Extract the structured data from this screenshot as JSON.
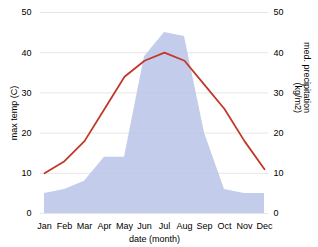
{
  "chart_data": {
    "type": "line",
    "xlabel": "date (month)",
    "ylabel": "max temp (C)",
    "y2label": "med. precipitation\n(kg/m2)",
    "categories": [
      "Jan",
      "Feb",
      "Mar",
      "Apr",
      "May",
      "Jun",
      "Jul",
      "Aug",
      "Sep",
      "Oct",
      "Nov",
      "Dec"
    ],
    "series": [
      {
        "type": "area",
        "axis": "y2",
        "color": "#b8c4e8",
        "values": [
          5,
          6,
          8,
          14,
          14,
          39,
          45,
          44,
          20,
          6,
          5,
          5
        ]
      },
      {
        "type": "line",
        "color": "#c0392b",
        "values": [
          10,
          13,
          18,
          26,
          34,
          38,
          40,
          38,
          32,
          26,
          18,
          11
        ]
      }
    ],
    "ylim": [
      0,
      50
    ],
    "yticks": [
      0,
      10,
      20,
      30,
      40,
      50
    ],
    "y2lim": [
      0,
      50
    ],
    "y2ticks": [
      0,
      10,
      20,
      30,
      40,
      50
    ],
    "grid": true
  }
}
